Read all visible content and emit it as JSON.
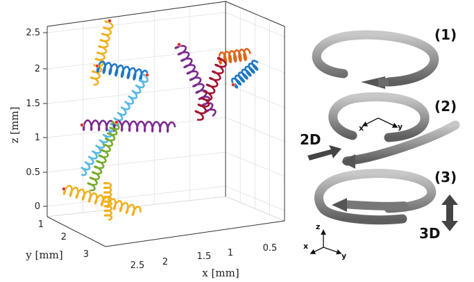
{
  "chart_data": {
    "type": "3d-trajectories",
    "zlabel": "z [mm]",
    "ylabel": "y [mm]",
    "xlabel": "x [mm]",
    "z_ticks": [
      "0",
      "0.5",
      "1",
      "1.5",
      "2",
      "2.5"
    ],
    "y_ticks": [
      "1",
      "2",
      "3"
    ],
    "x_ticks": [
      "2.5",
      "2",
      "1.5",
      "1",
      "0.5"
    ],
    "grid": true,
    "series": [
      {
        "color": "#f2b01e"
      },
      {
        "color": "#1f77c4"
      },
      {
        "color": "#57b8e6"
      },
      {
        "color": "#7b2a8f"
      },
      {
        "color": "#77ac30"
      },
      {
        "color": "#e0641a"
      },
      {
        "color": "#a2142f"
      }
    ]
  },
  "illustration": {
    "panels": [
      "(1)",
      "(2)",
      "(3)"
    ],
    "mode_2d": "2D",
    "mode_3d": "3D",
    "axes_upper": {
      "x": "x",
      "y": "y"
    },
    "axes_lower": {
      "z": "z",
      "x": "x",
      "y": "y"
    },
    "colors": {
      "tube": "#8a8a8a",
      "arrow": "#4a4a4a"
    }
  }
}
